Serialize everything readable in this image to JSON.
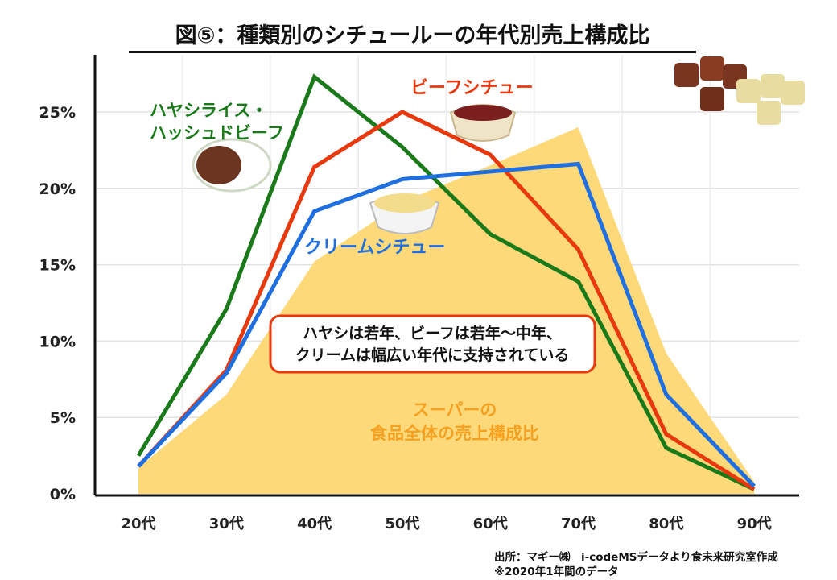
{
  "chart_data": {
    "type": "line",
    "title": "図⑤：種類別のシチュールーの年代別売上構成比",
    "categories": [
      "20代",
      "30代",
      "40代",
      "50代",
      "60代",
      "70代",
      "80代",
      "90代"
    ],
    "ylim": [
      0,
      25
    ],
    "yticks": [
      "0%",
      "5%",
      "10%",
      "15%",
      "20%",
      "25%"
    ],
    "ytick_values": [
      0,
      5,
      10,
      15,
      20,
      25
    ],
    "grid": true,
    "series": [
      {
        "name": "ハヤシライス・ハッシュドビーフ",
        "label_lines": [
          "ハヤシライス・",
          "ハッシュドビーフ"
        ],
        "color": "#1a7a1a",
        "values": [
          2.5,
          12.1,
          27.3,
          22.7,
          17.0,
          13.9,
          3.0,
          0.3
        ]
      },
      {
        "name": "ビーフシチュー",
        "color": "#e8380d",
        "values": [
          1.8,
          8.1,
          21.4,
          25.0,
          22.2,
          16.0,
          3.9,
          0.3
        ]
      },
      {
        "name": "クリームシチュー",
        "color": "#1f6fe0",
        "values": [
          1.8,
          7.9,
          18.5,
          20.6,
          21.1,
          21.6,
          6.5,
          0.5
        ]
      },
      {
        "name": "スーパーの食品全体の売上構成比",
        "label_lines": [
          "スーパーの",
          "食品全体の売上構成比"
        ],
        "type": "area",
        "color": "#fdd97a",
        "values": [
          1.7,
          6.5,
          15.2,
          19.1,
          21.5,
          24.0,
          9.2,
          0.8
        ]
      }
    ],
    "annotation": [
      "ハヤシは若年、ビーフは若年～中年、",
      "クリームは幅広い年代に支持されている"
    ]
  },
  "source": [
    "出所：マギー㈱　i-codeMSデータより食未来研究室作成",
    "※2020年1年間のデータ"
  ]
}
